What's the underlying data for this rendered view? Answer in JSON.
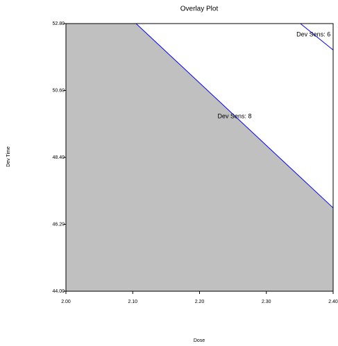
{
  "chart_data": {
    "type": "contour",
    "title": "Overlay Plot",
    "x_label": "Dose",
    "y_label": "Dev Time",
    "xlim": [
      2.0,
      2.4
    ],
    "ylim": [
      44.0,
      52.8
    ],
    "xticks": [
      {
        "value": 2.0,
        "label": "2.00"
      },
      {
        "value": 2.1,
        "label": "2.10"
      },
      {
        "value": 2.2,
        "label": "2.20"
      },
      {
        "value": 2.3,
        "label": "2.30"
      },
      {
        "value": 2.4,
        "label": "2.40"
      }
    ],
    "yticks": [
      {
        "value": 44.0,
        "label": "44.00"
      },
      {
        "value": 46.2,
        "label": "46.20"
      },
      {
        "value": 48.4,
        "label": "48.40"
      },
      {
        "value": 50.6,
        "label": "50.60"
      },
      {
        "value": 52.8,
        "label": "52.80"
      }
    ],
    "shade_color": "#c0c0c0",
    "series": [
      {
        "name": "Dev Sens: 8",
        "color": "#0000ff",
        "x": [
          2.105,
          2.4
        ],
        "values": [
          52.8,
          46.74
        ],
        "shaded": true
      },
      {
        "name": "Dev Sens: 6",
        "color": "#0000ff",
        "x": [
          2.351,
          2.4
        ],
        "values": [
          52.8,
          51.93
        ],
        "shaded": false
      }
    ]
  }
}
